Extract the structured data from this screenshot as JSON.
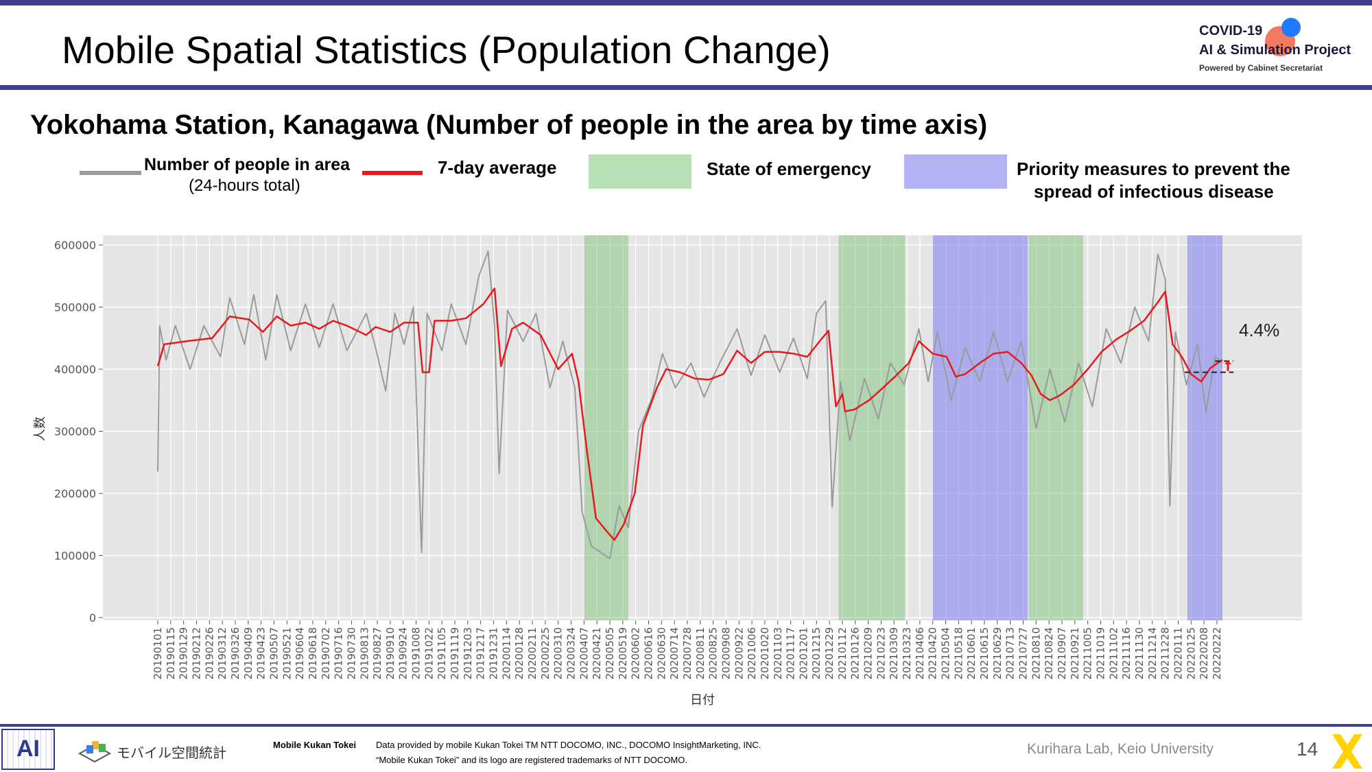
{
  "slide": {
    "title": "Mobile Spatial Statistics (Population Change)",
    "subtitle": "Yokohama Station, Kanagawa (Number of people in the area by time axis)",
    "page_number": "14",
    "colors": {
      "accent_bar": "#3f3f8f",
      "series_daily": "#9a9a9a",
      "series_avg": "#e8191a",
      "emergency": "#b9dfb4",
      "priority": "#b3b3f5",
      "plot_bg": "#e5e5e5"
    }
  },
  "logo": {
    "line1": "COVID-19",
    "line2": "AI & Simulation Project",
    "line3": "Powered by Cabinet Secretariat"
  },
  "legend": {
    "daily_label": "Number of people in area",
    "daily_sublabel": "(24-hours total)",
    "avg_label": "7-day average",
    "emergency_label": "State of emergency",
    "priority_label_1": "Priority measures to prevent the",
    "priority_label_2": "spread of infectious disease"
  },
  "annotation": {
    "change_pct": "4.4%"
  },
  "footer": {
    "mkt_name": "モバイル空間統計",
    "mkt_title": "Mobile Kukan Tokei",
    "credit_1": "Data provided by mobile Kukan Tokei TM NTT DOCOMO, INC., DOCOMO InsightMarketing, INC.",
    "credit_2": "“Mobile Kukan Tokei” and its logo are registered trademarks of NTT DOCOMO.",
    "lab": "Kurihara Lab, Keio University"
  },
  "chart_data": {
    "type": "line",
    "xlabel": "日付",
    "ylabel": "人数",
    "ylim": [
      0,
      600000
    ],
    "yticks": [
      0,
      100000,
      200000,
      300000,
      400000,
      500000,
      600000
    ],
    "ytick_labels": [
      "0",
      "100000",
      "200000",
      "300000",
      "400000",
      "500000",
      "600000"
    ],
    "grid": true,
    "x_start": "2019-01-01",
    "x_end": "2022-02-28",
    "xtick_labels": [
      "20190101",
      "20190115",
      "20190129",
      "20190212",
      "20190226",
      "20190312",
      "20190326",
      "20190409",
      "20190423",
      "20190507",
      "20190521",
      "20190604",
      "20190618",
      "20190702",
      "20190716",
      "20190730",
      "20190813",
      "20190827",
      "20190910",
      "20190924",
      "20191008",
      "20191022",
      "20191105",
      "20191119",
      "20191203",
      "20191217",
      "20191231",
      "20200114",
      "20200128",
      "20200211",
      "20200225",
      "20200310",
      "20200324",
      "20200407",
      "20200421",
      "20200505",
      "20200519",
      "20200602",
      "20200616",
      "20200630",
      "20200714",
      "20200728",
      "20200811",
      "20200825",
      "20200908",
      "20200922",
      "20201006",
      "20201020",
      "20201103",
      "20201117",
      "20201201",
      "20201215",
      "20201229",
      "20210112",
      "20210126",
      "20210209",
      "20210223",
      "20210309",
      "20210323",
      "20210406",
      "20210420",
      "20210504",
      "20210518",
      "20210601",
      "20210615",
      "20210629",
      "20210713",
      "20210727",
      "20210810",
      "20210824",
      "20210907",
      "20210921",
      "20211005",
      "20211019",
      "20211102",
      "20211116",
      "20211130",
      "20211214",
      "20211228",
      "20220111",
      "20220125",
      "20220208",
      "20220222"
    ],
    "series": [
      {
        "name": "7-day average",
        "points": [
          [
            "2019-01-01",
            405000
          ],
          [
            "2019-01-08",
            440000
          ],
          [
            "2019-02-01",
            445000
          ],
          [
            "2019-03-01",
            450000
          ],
          [
            "2019-03-20",
            485000
          ],
          [
            "2019-04-10",
            480000
          ],
          [
            "2019-04-25",
            460000
          ],
          [
            "2019-05-10",
            485000
          ],
          [
            "2019-05-25",
            470000
          ],
          [
            "2019-06-10",
            475000
          ],
          [
            "2019-06-25",
            465000
          ],
          [
            "2019-07-10",
            478000
          ],
          [
            "2019-07-25",
            470000
          ],
          [
            "2019-08-15",
            455000
          ],
          [
            "2019-08-25",
            468000
          ],
          [
            "2019-09-10",
            460000
          ],
          [
            "2019-09-25",
            475000
          ],
          [
            "2019-10-10",
            475000
          ],
          [
            "2019-10-15",
            395000
          ],
          [
            "2019-10-22",
            395000
          ],
          [
            "2019-10-28",
            478000
          ],
          [
            "2019-11-15",
            478000
          ],
          [
            "2019-12-01",
            482000
          ],
          [
            "2019-12-20",
            505000
          ],
          [
            "2020-01-01",
            530000
          ],
          [
            "2020-01-08",
            405000
          ],
          [
            "2020-01-20",
            465000
          ],
          [
            "2020-02-01",
            475000
          ],
          [
            "2020-02-20",
            455000
          ],
          [
            "2020-03-10",
            400000
          ],
          [
            "2020-03-25",
            425000
          ],
          [
            "2020-04-01",
            380000
          ],
          [
            "2020-04-10",
            270000
          ],
          [
            "2020-04-20",
            160000
          ],
          [
            "2020-05-01",
            140000
          ],
          [
            "2020-05-10",
            125000
          ],
          [
            "2020-05-20",
            150000
          ],
          [
            "2020-06-01",
            200000
          ],
          [
            "2020-06-10",
            310000
          ],
          [
            "2020-06-25",
            370000
          ],
          [
            "2020-07-05",
            400000
          ],
          [
            "2020-07-20",
            395000
          ],
          [
            "2020-08-05",
            385000
          ],
          [
            "2020-08-20",
            383000
          ],
          [
            "2020-09-05",
            392000
          ],
          [
            "2020-09-20",
            430000
          ],
          [
            "2020-10-05",
            410000
          ],
          [
            "2020-10-20",
            428000
          ],
          [
            "2020-11-05",
            428000
          ],
          [
            "2020-11-20",
            425000
          ],
          [
            "2020-12-05",
            420000
          ],
          [
            "2020-12-20",
            448000
          ],
          [
            "2020-12-28",
            462000
          ],
          [
            "2021-01-05",
            340000
          ],
          [
            "2021-01-12",
            360000
          ],
          [
            "2021-01-15",
            332000
          ],
          [
            "2021-01-25",
            335000
          ],
          [
            "2021-02-10",
            350000
          ],
          [
            "2021-02-25",
            370000
          ],
          [
            "2021-03-10",
            388000
          ],
          [
            "2021-03-25",
            410000
          ],
          [
            "2021-04-05",
            445000
          ],
          [
            "2021-04-20",
            425000
          ],
          [
            "2021-05-05",
            420000
          ],
          [
            "2021-05-15",
            388000
          ],
          [
            "2021-05-25",
            392000
          ],
          [
            "2021-06-10",
            410000
          ],
          [
            "2021-06-25",
            425000
          ],
          [
            "2021-07-10",
            428000
          ],
          [
            "2021-07-25",
            410000
          ],
          [
            "2021-08-05",
            390000
          ],
          [
            "2021-08-15",
            360000
          ],
          [
            "2021-08-25",
            350000
          ],
          [
            "2021-09-05",
            358000
          ],
          [
            "2021-09-20",
            375000
          ],
          [
            "2021-10-05",
            400000
          ],
          [
            "2021-10-20",
            428000
          ],
          [
            "2021-11-05",
            448000
          ],
          [
            "2021-11-20",
            462000
          ],
          [
            "2021-12-05",
            478000
          ],
          [
            "2021-12-20",
            508000
          ],
          [
            "2021-12-28",
            525000
          ],
          [
            "2022-01-05",
            440000
          ],
          [
            "2022-01-15",
            420000
          ],
          [
            "2022-01-25",
            392000
          ],
          [
            "2022-02-05",
            380000
          ],
          [
            "2022-02-15",
            402000
          ],
          [
            "2022-02-28",
            415000
          ]
        ]
      },
      {
        "name": "Number of people in area",
        "points": [
          [
            "2019-01-01",
            235000
          ],
          [
            "2019-01-03",
            470000
          ],
          [
            "2019-01-10",
            415000
          ],
          [
            "2019-01-20",
            470000
          ],
          [
            "2019-02-05",
            400000
          ],
          [
            "2019-02-20",
            470000
          ],
          [
            "2019-03-10",
            420000
          ],
          [
            "2019-03-20",
            515000
          ],
          [
            "2019-04-05",
            440000
          ],
          [
            "2019-04-15",
            520000
          ],
          [
            "2019-04-28",
            415000
          ],
          [
            "2019-05-10",
            520000
          ],
          [
            "2019-05-25",
            430000
          ],
          [
            "2019-06-10",
            505000
          ],
          [
            "2019-06-25",
            435000
          ],
          [
            "2019-07-10",
            505000
          ],
          [
            "2019-07-25",
            430000
          ],
          [
            "2019-08-15",
            490000
          ],
          [
            "2019-08-25",
            435000
          ],
          [
            "2019-09-05",
            365000
          ],
          [
            "2019-09-15",
            490000
          ],
          [
            "2019-09-25",
            440000
          ],
          [
            "2019-10-05",
            500000
          ],
          [
            "2019-10-14",
            105000
          ],
          [
            "2019-10-20",
            490000
          ],
          [
            "2019-11-05",
            430000
          ],
          [
            "2019-11-15",
            505000
          ],
          [
            "2019-12-01",
            440000
          ],
          [
            "2019-12-15",
            550000
          ],
          [
            "2019-12-25",
            590000
          ],
          [
            "2020-01-01",
            470000
          ],
          [
            "2020-01-06",
            232000
          ],
          [
            "2020-01-15",
            495000
          ],
          [
            "2020-02-01",
            445000
          ],
          [
            "2020-02-15",
            490000
          ],
          [
            "2020-03-01",
            370000
          ],
          [
            "2020-03-15",
            445000
          ],
          [
            "2020-03-28",
            370000
          ],
          [
            "2020-04-05",
            170000
          ],
          [
            "2020-04-15",
            115000
          ],
          [
            "2020-05-05",
            95000
          ],
          [
            "2020-05-15",
            180000
          ],
          [
            "2020-05-25",
            145000
          ],
          [
            "2020-06-05",
            300000
          ],
          [
            "2020-06-20",
            355000
          ],
          [
            "2020-07-01",
            425000
          ],
          [
            "2020-07-15",
            370000
          ],
          [
            "2020-08-01",
            410000
          ],
          [
            "2020-08-15",
            355000
          ],
          [
            "2020-09-01",
            410000
          ],
          [
            "2020-09-20",
            465000
          ],
          [
            "2020-10-05",
            390000
          ],
          [
            "2020-10-20",
            455000
          ],
          [
            "2020-11-05",
            395000
          ],
          [
            "2020-11-20",
            450000
          ],
          [
            "2020-12-05",
            385000
          ],
          [
            "2020-12-15",
            490000
          ],
          [
            "2020-12-25",
            510000
          ],
          [
            "2021-01-01",
            178000
          ],
          [
            "2021-01-10",
            380000
          ],
          [
            "2021-01-20",
            285000
          ],
          [
            "2021-02-05",
            385000
          ],
          [
            "2021-02-20",
            320000
          ],
          [
            "2021-03-05",
            410000
          ],
          [
            "2021-03-20",
            375000
          ],
          [
            "2021-04-05",
            465000
          ],
          [
            "2021-04-15",
            380000
          ],
          [
            "2021-04-25",
            460000
          ],
          [
            "2021-05-10",
            350000
          ],
          [
            "2021-05-25",
            435000
          ],
          [
            "2021-06-10",
            380000
          ],
          [
            "2021-06-25",
            460000
          ],
          [
            "2021-07-10",
            380000
          ],
          [
            "2021-07-25",
            445000
          ],
          [
            "2021-08-10",
            305000
          ],
          [
            "2021-08-25",
            400000
          ],
          [
            "2021-09-10",
            315000
          ],
          [
            "2021-09-25",
            410000
          ],
          [
            "2021-10-10",
            340000
          ],
          [
            "2021-10-25",
            465000
          ],
          [
            "2021-11-10",
            410000
          ],
          [
            "2021-11-25",
            500000
          ],
          [
            "2021-12-10",
            445000
          ],
          [
            "2021-12-20",
            585000
          ],
          [
            "2021-12-28",
            545000
          ],
          [
            "2022-01-02",
            180000
          ],
          [
            "2022-01-08",
            460000
          ],
          [
            "2022-01-20",
            375000
          ],
          [
            "2022-02-01",
            440000
          ],
          [
            "2022-02-10",
            330000
          ],
          [
            "2022-02-20",
            420000
          ],
          [
            "2022-02-28",
            410000
          ]
        ]
      }
    ],
    "shaded_periods": [
      {
        "type": "State of emergency",
        "start": "2020-04-07",
        "end": "2020-05-25"
      },
      {
        "type": "State of emergency",
        "start": "2021-01-08",
        "end": "2021-03-21"
      },
      {
        "type": "Priority measures to prevent the spread of infectious disease",
        "start": "2021-04-20",
        "end": "2021-08-01"
      },
      {
        "type": "State of emergency",
        "start": "2021-08-02",
        "end": "2021-09-30"
      },
      {
        "type": "Priority measures to prevent the spread of infectious disease",
        "start": "2022-01-21",
        "end": "2022-02-28"
      }
    ],
    "reference_lines": [
      {
        "value": 395000,
        "start": "2022-01-18",
        "end": "2022-03-12",
        "style": "dashed"
      },
      {
        "value": 413000,
        "start": "2022-02-20",
        "end": "2022-03-12",
        "style": "dashed"
      }
    ]
  }
}
